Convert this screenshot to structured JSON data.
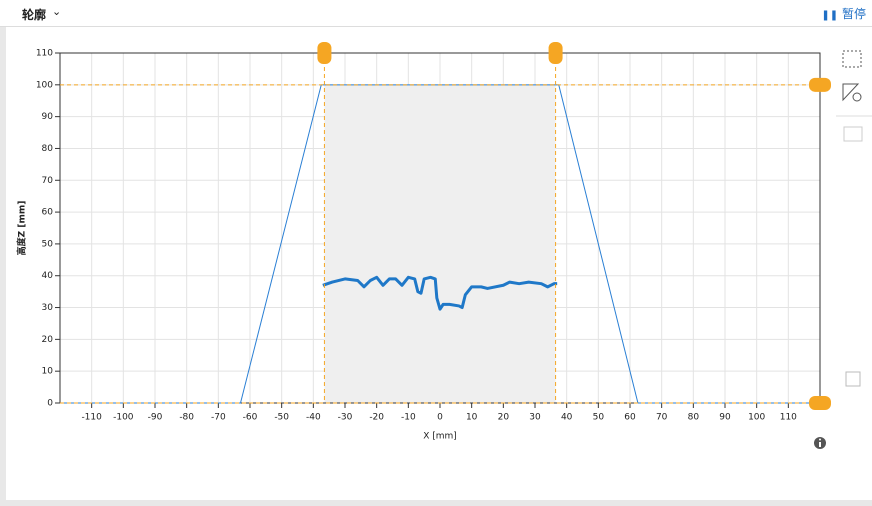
{
  "header": {
    "title": "轮廓",
    "pause": "暂停"
  },
  "chart_data": {
    "type": "line",
    "x_label": "X [mm]",
    "y_label": "高度Z [mm]",
    "xlim": [
      -120,
      120
    ],
    "ylim": [
      0,
      110
    ],
    "xticks": [
      -110,
      -100,
      -90,
      -80,
      -70,
      -60,
      -50,
      -40,
      -30,
      -20,
      -10,
      0,
      10,
      20,
      30,
      40,
      50,
      60,
      70,
      80,
      90,
      100,
      110
    ],
    "yticks": [
      0,
      10,
      20,
      30,
      40,
      50,
      60,
      70,
      80,
      90,
      100,
      110
    ],
    "grid": true,
    "selection": {
      "x": [
        -36.5,
        36.5
      ],
      "y": [
        0,
        100
      ],
      "color": "#f5a623"
    },
    "series": [
      {
        "color": "#2a7fd4",
        "x": [
          -120,
          -63,
          -37.5,
          37.5,
          62.5,
          120
        ],
        "values": [
          0,
          0,
          100,
          100,
          0,
          0
        ]
      },
      {
        "color": "#1f78c8",
        "x": [
          -37,
          -34,
          -30,
          -26,
          -24,
          -22,
          -20,
          -18,
          -16,
          -14,
          -12,
          -10,
          -8,
          -7,
          -6,
          -5,
          -3,
          -1.5,
          -1,
          0,
          1,
          3,
          6,
          7,
          8,
          10,
          13,
          15,
          20,
          22,
          25,
          28,
          32,
          34,
          36,
          37
        ],
        "values": [
          37,
          38,
          39,
          38.5,
          36.5,
          38.5,
          39.5,
          37,
          39,
          39,
          37,
          39.5,
          39,
          35,
          34.5,
          39,
          39.5,
          39,
          33,
          29.5,
          31,
          31,
          30.5,
          30,
          34,
          36.5,
          36.5,
          36,
          37,
          38,
          37.5,
          38,
          37.5,
          36.5,
          37.5,
          37.5
        ]
      }
    ]
  }
}
